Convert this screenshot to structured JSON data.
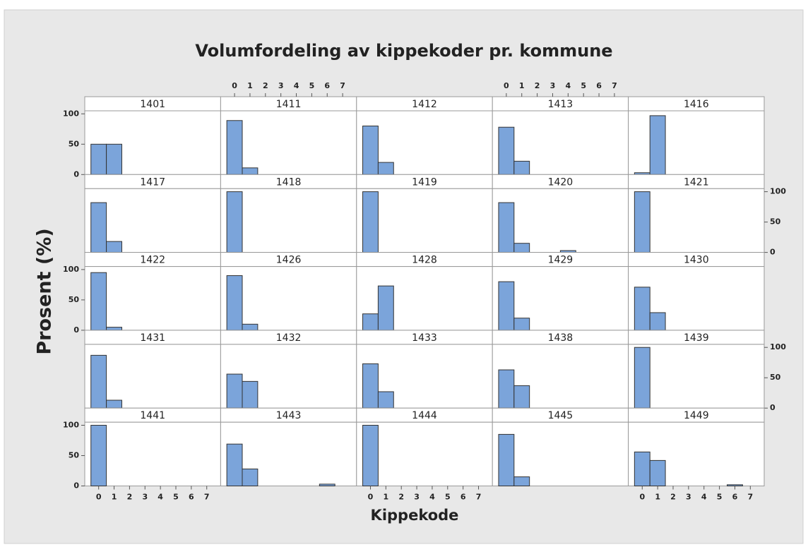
{
  "chart_data": {
    "type": "histogram",
    "title": "Volumfordeling av kippekoder pr. kommune",
    "x_label": "Kippekode",
    "y_label": "Prosent (%)",
    "color": "#7ba4da",
    "bins": [
      -0.5,
      0.5,
      1.5,
      2.5,
      3.5,
      4.5,
      5.5,
      6.5,
      7.5
    ],
    "xlim": [
      -0.9,
      7.9
    ],
    "xticks": [
      0,
      1,
      2,
      3,
      4,
      5,
      6,
      7
    ],
    "ylim": [
      0,
      105
    ],
    "yticks": [
      0,
      50,
      100
    ],
    "panels": [
      {
        "title": "1401",
        "values": [
          50,
          50,
          0,
          0,
          0,
          0,
          0,
          0
        ]
      },
      {
        "title": "1411",
        "values": [
          89,
          11,
          0,
          0,
          0,
          0,
          0,
          0
        ]
      },
      {
        "title": "1412",
        "values": [
          80,
          20,
          0,
          0,
          0,
          0,
          0,
          0
        ]
      },
      {
        "title": "1413",
        "values": [
          78,
          22,
          0,
          0,
          0,
          0,
          0,
          0
        ]
      },
      {
        "title": "1416",
        "values": [
          3,
          97,
          0,
          0,
          0,
          0,
          0,
          0
        ]
      },
      {
        "title": "1417",
        "values": [
          82,
          18,
          0,
          0,
          0,
          0,
          0,
          0
        ]
      },
      {
        "title": "1418",
        "values": [
          100,
          0,
          0,
          0,
          0,
          0,
          0,
          0
        ]
      },
      {
        "title": "1419",
        "values": [
          100,
          0,
          0,
          0,
          0,
          0,
          0,
          0
        ]
      },
      {
        "title": "1420",
        "values": [
          82,
          15,
          0,
          0,
          3,
          0,
          0,
          0
        ]
      },
      {
        "title": "1421",
        "values": [
          100,
          0,
          0,
          0,
          0,
          0,
          0,
          0
        ]
      },
      {
        "title": "1422",
        "values": [
          95,
          5,
          0,
          0,
          0,
          0,
          0,
          0
        ]
      },
      {
        "title": "1426",
        "values": [
          90,
          10,
          0,
          0,
          0,
          0,
          0,
          0
        ]
      },
      {
        "title": "1428",
        "values": [
          27,
          73,
          0,
          0,
          0,
          0,
          0,
          0
        ]
      },
      {
        "title": "1429",
        "values": [
          80,
          20,
          0,
          0,
          0,
          0,
          0,
          0
        ]
      },
      {
        "title": "1430",
        "values": [
          71,
          29,
          0,
          0,
          0,
          0,
          0,
          0
        ]
      },
      {
        "title": "1431",
        "values": [
          87,
          13,
          0,
          0,
          0,
          0,
          0,
          0
        ]
      },
      {
        "title": "1432",
        "values": [
          56,
          44,
          0,
          0,
          0,
          0,
          0,
          0
        ]
      },
      {
        "title": "1433",
        "values": [
          73,
          27,
          0,
          0,
          0,
          0,
          0,
          0
        ]
      },
      {
        "title": "1438",
        "values": [
          63,
          37,
          0,
          0,
          0,
          0,
          0,
          0
        ]
      },
      {
        "title": "1439",
        "values": [
          100,
          0,
          0,
          0,
          0,
          0,
          0,
          0
        ]
      },
      {
        "title": "1441",
        "values": [
          100,
          0,
          0,
          0,
          0,
          0,
          0,
          0
        ]
      },
      {
        "title": "1443",
        "values": [
          69,
          28,
          0,
          0,
          0,
          0,
          3,
          0
        ]
      },
      {
        "title": "1444",
        "values": [
          100,
          0,
          0,
          0,
          0,
          0,
          0,
          0
        ]
      },
      {
        "title": "1445",
        "values": [
          85,
          15,
          0,
          0,
          0,
          0,
          0,
          0
        ]
      },
      {
        "title": "1449",
        "values": [
          56,
          42,
          0,
          0,
          0,
          0,
          2,
          0
        ]
      }
    ]
  }
}
